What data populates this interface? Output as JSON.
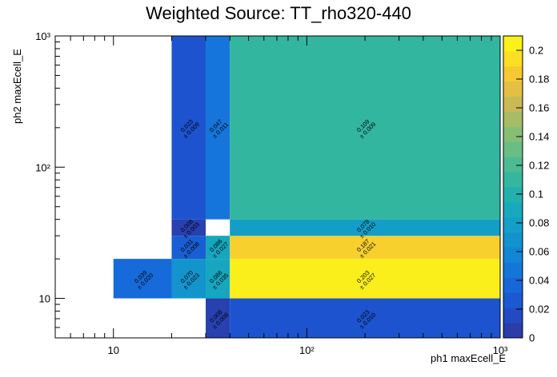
{
  "chart_data": {
    "type": "heatmap",
    "title": "Weighted Source: TT_rho320-440",
    "xlabel": "ph1 maxEcell_E",
    "ylabel": "ph2 maxEcell_E",
    "x_scale": "log",
    "y_scale": "log",
    "xlim": [
      5,
      1000
    ],
    "ylim": [
      5,
      1000
    ],
    "x_edges": [
      10,
      20,
      30,
      40,
      1000
    ],
    "y_edges": [
      5,
      10,
      20,
      30,
      40,
      1000
    ],
    "x_tick_labels": [
      "10",
      "10²",
      "10³"
    ],
    "y_tick_labels": [
      "10",
      "10²",
      "10³"
    ],
    "colorbar": {
      "min": 0,
      "max": 0.21,
      "ticks": [
        "0",
        "0.02",
        "0.04",
        "0.06",
        "0.08",
        "0.1",
        "0.12",
        "0.14",
        "0.16",
        "0.18",
        "0.2"
      ]
    },
    "cells": [
      {
        "x": [
          10,
          20
        ],
        "y": [
          10,
          20
        ],
        "value": 0.039,
        "label": "0.039",
        "error": "± 0.020"
      },
      {
        "x": [
          20,
          30
        ],
        "y": [
          10,
          20
        ],
        "value": 0.07,
        "label": "0.070",
        "error": "± 0.023"
      },
      {
        "x": [
          20,
          30
        ],
        "y": [
          20,
          30
        ],
        "value": 0.031,
        "label": "0.031",
        "error": "± 0.008"
      },
      {
        "x": [
          20,
          30
        ],
        "y": [
          30,
          40
        ],
        "value": 0.008,
        "label": "0.008",
        "error": "± 0.003"
      },
      {
        "x": [
          20,
          30
        ],
        "y": [
          40,
          1000
        ],
        "value": 0.023,
        "label": "0.023",
        "error": "± 0.009"
      },
      {
        "x": [
          30,
          40
        ],
        "y": [
          5,
          10
        ],
        "value": 0.008,
        "label": "0.008",
        "error": "± 0.008"
      },
      {
        "x": [
          30,
          40
        ],
        "y": [
          10,
          20
        ],
        "value": 0.086,
        "label": "0.086",
        "error": "± 0.035"
      },
      {
        "x": [
          30,
          40
        ],
        "y": [
          20,
          30
        ],
        "value": 0.086,
        "label": "0.086",
        "error": "± 0.027"
      },
      {
        "x": [
          30,
          40
        ],
        "y": [
          40,
          1000
        ],
        "value": 0.047,
        "label": "0.047",
        "error": "± 0.011"
      },
      {
        "x": [
          40,
          1000
        ],
        "y": [
          5,
          10
        ],
        "value": 0.023,
        "label": "0.023",
        "error": "± 0.010"
      },
      {
        "x": [
          40,
          1000
        ],
        "y": [
          10,
          20
        ],
        "value": 0.203,
        "label": "0.203",
        "error": "± 0.027"
      },
      {
        "x": [
          40,
          1000
        ],
        "y": [
          20,
          30
        ],
        "value": 0.187,
        "label": "0.187",
        "error": "± 0.021"
      },
      {
        "x": [
          40,
          1000
        ],
        "y": [
          30,
          40
        ],
        "value": 0.078,
        "label": "0.078",
        "error": "± 0.010"
      },
      {
        "x": [
          40,
          1000
        ],
        "y": [
          40,
          1000
        ],
        "value": 0.109,
        "label": "0.109",
        "error": "± 0.009"
      }
    ]
  }
}
